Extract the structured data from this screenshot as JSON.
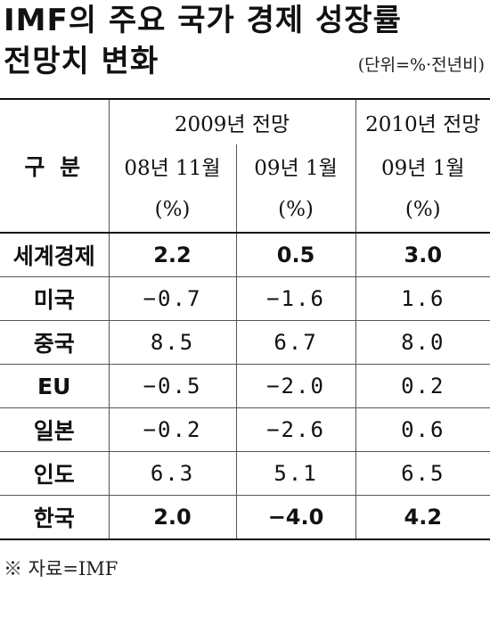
{
  "title_line1": "IMF의 주요 국가 경제 성장률",
  "title_line2": "전망치 변화",
  "unit_note": "(단위=%·전년비)",
  "table": {
    "row_header": "구 분",
    "period_2009": "2009년 전망",
    "period_2010": "2010년 전망",
    "sub_cols": [
      "08년 11월",
      "09년 1월",
      "09년 1월"
    ],
    "unit_cols": [
      "(%)",
      "(%)",
      "(%)"
    ],
    "rows": [
      {
        "label": "세계경제",
        "v1": "2.2",
        "v2": "0.5",
        "v3": "3.0"
      },
      {
        "label": "미국",
        "v1": "−0.7",
        "v2": "−1.6",
        "v3": "1.6"
      },
      {
        "label": "중국",
        "v1": "8.5",
        "v2": "6.7",
        "v3": "8.0"
      },
      {
        "label": "EU",
        "v1": "−0.5",
        "v2": "−2.0",
        "v3": "0.2"
      },
      {
        "label": "일본",
        "v1": "−0.2",
        "v2": "−2.6",
        "v3": "0.6"
      },
      {
        "label": "인도",
        "v1": "6.3",
        "v2": "5.1",
        "v3": "6.5"
      },
      {
        "label": "한국",
        "v1": "2.0",
        "v2": "−4.0",
        "v3": "4.2"
      }
    ]
  },
  "source": "※ 자료=IMF"
}
